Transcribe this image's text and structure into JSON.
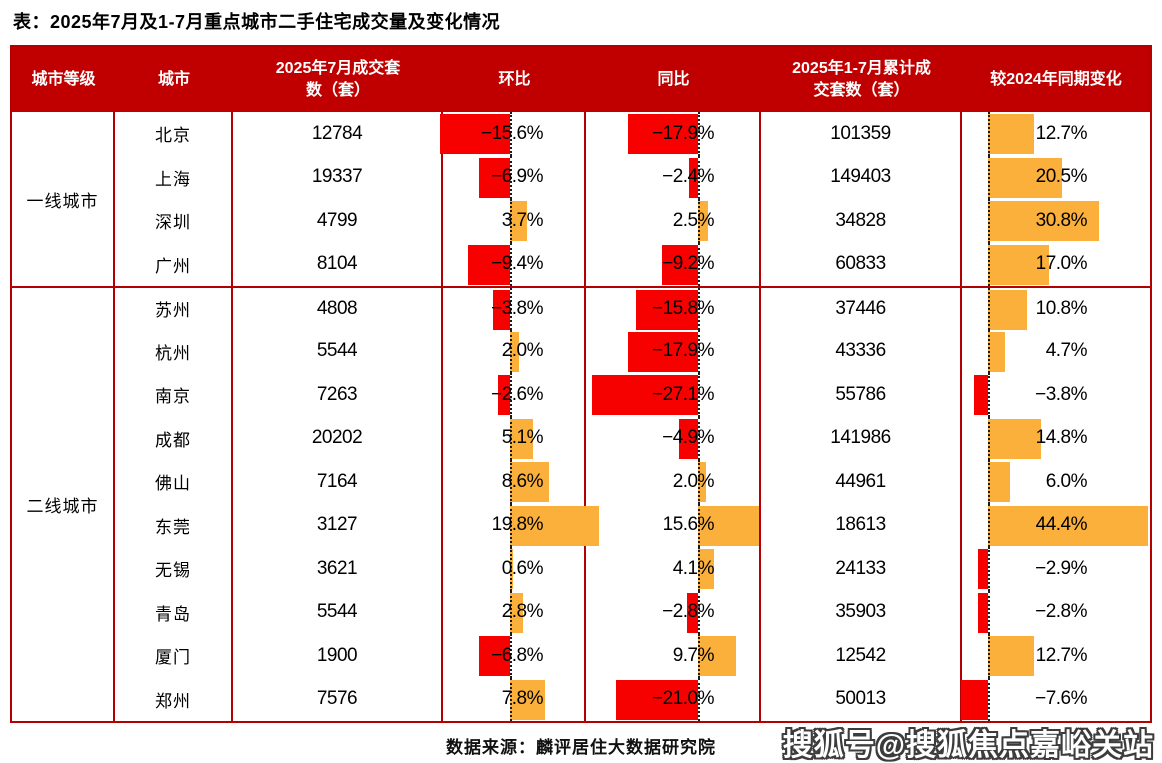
{
  "title": "表：2025年7月及1-7月重点城市二手住宅成交量及变化情况",
  "colors": {
    "header_bg": "#c00000",
    "table_border": "#b40000",
    "bar_negative_red": "#f70000",
    "bar_positive_orange": "#fbb03c"
  },
  "table": {
    "headers": [
      "城市等级",
      "城市",
      "2025年7月成交套\n数（套）",
      "环比",
      "同比",
      "2025年1-7月累计成\n交套数（套）",
      "较2024年同期变化"
    ],
    "tiers": [
      {
        "label": "一线城市",
        "rows": [
          {
            "city": "北京",
            "jul": "12784",
            "mom": -15.6,
            "mom_label": "−15.6%",
            "yoy": -17.9,
            "yoy_label": "−17.9%",
            "cum": "101359",
            "chg": 12.7,
            "chg_label": "12.7%"
          },
          {
            "city": "上海",
            "jul": "19337",
            "mom": -6.9,
            "mom_label": "−6.9%",
            "yoy": -2.4,
            "yoy_label": "−2.4%",
            "cum": "149403",
            "chg": 20.5,
            "chg_label": "20.5%"
          },
          {
            "city": "深圳",
            "jul": "4799",
            "mom": 3.7,
            "mom_label": "3.7%",
            "yoy": 2.5,
            "yoy_label": "2.5%",
            "cum": "34828",
            "chg": 30.8,
            "chg_label": "30.8%"
          },
          {
            "city": "广州",
            "jul": "8104",
            "mom": -9.4,
            "mom_label": "−9.4%",
            "yoy": -9.2,
            "yoy_label": "−9.2%",
            "cum": "60833",
            "chg": 17.0,
            "chg_label": "17.0%"
          }
        ]
      },
      {
        "label": "二线城市",
        "rows": [
          {
            "city": "苏州",
            "jul": "4808",
            "mom": -3.8,
            "mom_label": "−3.8%",
            "yoy": -15.8,
            "yoy_label": "−15.8%",
            "cum": "37446",
            "chg": 10.8,
            "chg_label": "10.8%"
          },
          {
            "city": "杭州",
            "jul": "5544",
            "mom": 2.0,
            "mom_label": "2.0%",
            "yoy": -17.9,
            "yoy_label": "−17.9%",
            "cum": "43336",
            "chg": 4.7,
            "chg_label": "4.7%"
          },
          {
            "city": "南京",
            "jul": "7263",
            "mom": -2.6,
            "mom_label": "−2.6%",
            "yoy": -27.1,
            "yoy_label": "−27.1%",
            "cum": "55786",
            "chg": -3.8,
            "chg_label": "−3.8%"
          },
          {
            "city": "成都",
            "jul": "20202",
            "mom": 5.1,
            "mom_label": "5.1%",
            "yoy": -4.9,
            "yoy_label": "−4.9%",
            "cum": "141986",
            "chg": 14.8,
            "chg_label": "14.8%"
          },
          {
            "city": "佛山",
            "jul": "7164",
            "mom": 8.6,
            "mom_label": "8.6%",
            "yoy": 2.0,
            "yoy_label": "2.0%",
            "cum": "44961",
            "chg": 6.0,
            "chg_label": "6.0%"
          },
          {
            "city": "东莞",
            "jul": "3127",
            "mom": 19.8,
            "mom_label": "19.8%",
            "yoy": 15.6,
            "yoy_label": "15.6%",
            "cum": "18613",
            "chg": 44.4,
            "chg_label": "44.4%"
          },
          {
            "city": "无锡",
            "jul": "3621",
            "mom": 0.6,
            "mom_label": "0.6%",
            "yoy": 4.1,
            "yoy_label": "4.1%",
            "cum": "24133",
            "chg": -2.9,
            "chg_label": "−2.9%"
          },
          {
            "city": "青岛",
            "jul": "5544",
            "mom": 2.8,
            "mom_label": "2.8%",
            "yoy": -2.8,
            "yoy_label": "−2.8%",
            "cum": "35903",
            "chg": -2.8,
            "chg_label": "−2.8%"
          },
          {
            "city": "厦门",
            "jul": "1900",
            "mom": -6.8,
            "mom_label": "−6.8%",
            "yoy": 9.7,
            "yoy_label": "9.7%",
            "cum": "12542",
            "chg": 12.7,
            "chg_label": "12.7%"
          },
          {
            "city": "郑州",
            "jul": "7576",
            "mom": 7.8,
            "mom_label": "7.8%",
            "yoy": -21.0,
            "yoy_label": "−21.0%",
            "cum": "50013",
            "chg": -7.6,
            "chg_label": "−7.6%"
          }
        ]
      }
    ]
  },
  "footer": {
    "source": "数据来源：麟评居住大数据研究院",
    "watermark": "搜狐号@搜狐焦点嘉峪关站"
  },
  "chart_data": {
    "type": "table",
    "title": "2025年7月及1-7月重点城市二手住宅成交量及变化情况",
    "columns": [
      "城市等级",
      "城市",
      "2025年7月成交套数（套）",
      "环比%",
      "同比%",
      "2025年1-7月累计成交套数（套）",
      "较2024年同期变化%"
    ],
    "rows": [
      [
        "一线城市",
        "北京",
        12784,
        -15.6,
        -17.9,
        101359,
        12.7
      ],
      [
        "一线城市",
        "上海",
        19337,
        -6.9,
        -2.4,
        149403,
        20.5
      ],
      [
        "一线城市",
        "深圳",
        4799,
        3.7,
        2.5,
        34828,
        30.8
      ],
      [
        "一线城市",
        "广州",
        8104,
        -9.4,
        -9.2,
        60833,
        17.0
      ],
      [
        "二线城市",
        "苏州",
        4808,
        -3.8,
        -15.8,
        37446,
        10.8
      ],
      [
        "二线城市",
        "杭州",
        5544,
        2.0,
        -17.9,
        43336,
        4.7
      ],
      [
        "二线城市",
        "南京",
        7263,
        -2.6,
        -27.1,
        55786,
        -3.8
      ],
      [
        "二线城市",
        "成都",
        20202,
        5.1,
        -4.9,
        141986,
        14.8
      ],
      [
        "二线城市",
        "佛山",
        7164,
        8.6,
        2.0,
        44961,
        6.0
      ],
      [
        "二线城市",
        "东莞",
        3127,
        19.8,
        15.6,
        18613,
        44.4
      ],
      [
        "二线城市",
        "无锡",
        3621,
        0.6,
        4.1,
        24133,
        -2.9
      ],
      [
        "二线城市",
        "青岛",
        5544,
        2.8,
        -2.8,
        35903,
        -2.8
      ],
      [
        "二线城市",
        "厦门",
        1900,
        -6.8,
        9.7,
        12542,
        12.7
      ],
      [
        "二线城市",
        "郑州",
        7576,
        7.8,
        -21.0,
        50013,
        -7.6
      ]
    ],
    "bar_columns_style": {
      "环比%": {
        "negative_color": "#f70000",
        "positive_color": "#fbb03c",
        "axis": "dotted"
      },
      "同比%": {
        "negative_color": "#f70000",
        "positive_color": "#fbb03c",
        "axis": "dotted"
      },
      "较2024年同期变化%": {
        "negative_color": "#f70000",
        "positive_color": "#fbb03c",
        "axis": "dotted"
      }
    },
    "legend": "none",
    "grid": "red table borders, dotted zero-axis in bar columns"
  }
}
